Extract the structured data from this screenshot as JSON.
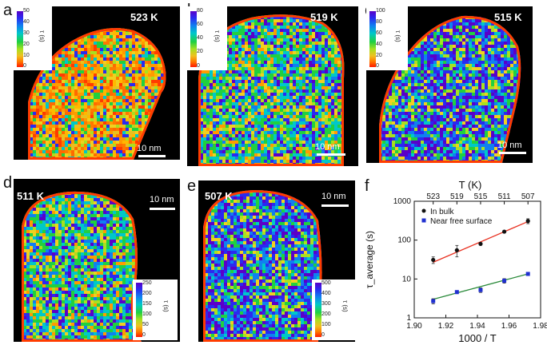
{
  "panels": [
    {
      "letter": "a",
      "temp": "523 K",
      "scale_label": "10 nm",
      "cbar_ticks": [
        "50",
        "40",
        "30",
        "20",
        "10",
        "0"
      ],
      "cbar_unit": "τ (s)",
      "dominant": "warm"
    },
    {
      "letter": "b",
      "temp": "519 K",
      "scale_label": "10 nm",
      "cbar_ticks": [
        "80",
        "60",
        "40",
        "20",
        "0"
      ],
      "cbar_unit": "τ (s)",
      "dominant": "mixed"
    },
    {
      "letter": "c",
      "temp": "515 K",
      "scale_label": "10 nm",
      "cbar_ticks": [
        "100",
        "80",
        "60",
        "40",
        "20",
        "0"
      ],
      "cbar_unit": "τ (s)",
      "dominant": "cool"
    },
    {
      "letter": "d",
      "temp": "511 K",
      "scale_label": "10 nm",
      "cbar_ticks": [
        "250",
        "200",
        "150",
        "100",
        "50",
        "0"
      ],
      "cbar_unit": "τ (s)",
      "dominant": "mixed"
    },
    {
      "letter": "e",
      "temp": "507 K",
      "scale_label": "10 nm",
      "cbar_ticks": [
        "500",
        "400",
        "300",
        "200",
        "100",
        "0"
      ],
      "cbar_unit": "τ (s)",
      "dominant": "cool"
    }
  ],
  "plot": {
    "letter": "f",
    "top_axis_title": "T (K)",
    "top_ticks": [
      "523",
      "519",
      "515",
      "511",
      "507"
    ]
  },
  "chart_data": {
    "type": "scatter",
    "xlabel": "1000 / T",
    "ylabel": "τ_average (s)",
    "xlim": [
      1.9,
      1.98
    ],
    "ylim": [
      1,
      1000
    ],
    "yscale": "log",
    "x_ticks": [
      "1.90",
      "1.92",
      "1.94",
      "1.96",
      "1.98"
    ],
    "y_ticks": [
      "1",
      "10",
      "100",
      "1000"
    ],
    "legend_position": "top-left",
    "series": [
      {
        "name": "In bulk",
        "color": "#111111",
        "fit_color": "#e83020",
        "x": [
          1.912,
          1.927,
          1.942,
          1.957,
          1.972
        ],
        "y": [
          31,
          55,
          80,
          165,
          310
        ],
        "err": [
          6,
          18,
          6,
          12,
          45
        ],
        "fit": [
          [
            1.912,
            27
          ],
          [
            1.972,
            300
          ]
        ]
      },
      {
        "name": "Near free surface",
        "color": "#2030d0",
        "fit_color": "#2a8a3a",
        "x": [
          1.912,
          1.927,
          1.942,
          1.957,
          1.972
        ],
        "y": [
          2.7,
          4.6,
          5.2,
          9.0,
          13.5
        ],
        "err": [
          0.4,
          0.4,
          0.7,
          1.2,
          1.2
        ],
        "fit": [
          [
            1.912,
            3.0
          ],
          [
            1.972,
            13.5
          ]
        ]
      }
    ]
  }
}
